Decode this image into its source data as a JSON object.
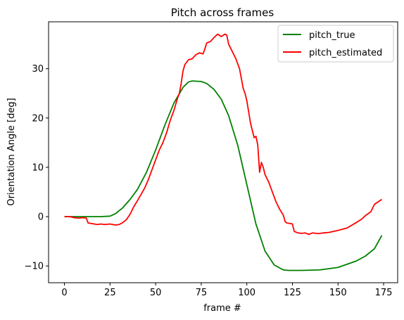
{
  "chart_data": {
    "type": "line",
    "title": "Pitch across frames",
    "xlabel": "frame #",
    "ylabel": "Orientation Angle [deg]",
    "xlim": [
      -8.7,
      182.7
    ],
    "ylim": [
      -13.4,
      39.5
    ],
    "xticks": [
      0,
      25,
      50,
      75,
      100,
      125,
      150,
      175
    ],
    "yticks": [
      -10,
      0,
      10,
      20,
      30
    ],
    "grid": false,
    "legend_position": "top-right",
    "series": [
      {
        "name": "pitch_true",
        "color": "#008000",
        "x": [
          0,
          10,
          20,
          25,
          28,
          32,
          36,
          40,
          45,
          50,
          55,
          60,
          65,
          68,
          70,
          75,
          78,
          82,
          86,
          90,
          95,
          100,
          105,
          110,
          115,
          120,
          123,
          125,
          130,
          140,
          150,
          160,
          165,
          170,
          174
        ],
        "y": [
          0,
          0,
          0,
          0.1,
          0.6,
          1.8,
          3.5,
          5.5,
          9.0,
          13.5,
          18.5,
          23.0,
          26.2,
          27.3,
          27.5,
          27.4,
          27.0,
          25.8,
          23.8,
          20.5,
          14.5,
          6.5,
          -1.5,
          -7.0,
          -9.8,
          -10.8,
          -10.9,
          -10.9,
          -10.9,
          -10.8,
          -10.3,
          -9.0,
          -8.0,
          -6.5,
          -3.8
        ]
      },
      {
        "name": "pitch_estimated",
        "color": "#ff0000",
        "x": [
          0,
          3,
          5,
          8,
          10,
          12,
          13,
          15,
          18,
          20,
          22,
          25,
          28,
          30,
          32,
          34,
          36,
          38,
          40,
          42,
          44,
          46,
          48,
          50,
          52,
          54,
          56,
          58,
          60,
          62,
          63,
          64,
          65,
          66,
          68,
          70,
          72,
          74,
          76,
          77,
          78,
          80,
          82,
          84,
          86,
          88,
          89,
          90,
          92,
          94,
          96,
          98,
          99,
          100,
          102,
          104,
          105,
          106,
          107,
          108,
          109,
          110,
          112,
          114,
          116,
          118,
          120,
          121,
          122,
          124,
          125,
          126,
          128,
          130,
          132,
          134,
          136,
          138,
          140,
          142,
          145,
          150,
          155,
          160,
          163,
          165,
          168,
          170,
          174
        ],
        "y": [
          0,
          0,
          -0.2,
          -0.3,
          -0.2,
          -0.3,
          -1.3,
          -1.4,
          -1.6,
          -1.5,
          -1.6,
          -1.5,
          -1.7,
          -1.6,
          -1.2,
          -0.6,
          0.5,
          2.0,
          3.2,
          4.5,
          5.8,
          7.5,
          9.5,
          11.5,
          13.5,
          15.0,
          17.0,
          19.5,
          21.5,
          24.0,
          25.0,
          27.0,
          29.5,
          30.8,
          31.8,
          32.0,
          32.8,
          33.2,
          33.0,
          34.0,
          35.2,
          35.5,
          36.3,
          37.0,
          36.5,
          37.0,
          36.8,
          35.0,
          33.5,
          32.0,
          30.0,
          26.0,
          25.0,
          23.5,
          19.0,
          16.0,
          16.3,
          14.5,
          9.0,
          11.0,
          10.0,
          8.5,
          7.0,
          5.0,
          3.0,
          1.5,
          0.3,
          -1.0,
          -1.3,
          -1.4,
          -1.5,
          -3.0,
          -3.3,
          -3.4,
          -3.3,
          -3.6,
          -3.3,
          -3.4,
          -3.4,
          -3.3,
          -3.2,
          -2.8,
          -2.3,
          -1.2,
          -0.5,
          0.2,
          1.0,
          2.5,
          3.5
        ]
      }
    ]
  }
}
